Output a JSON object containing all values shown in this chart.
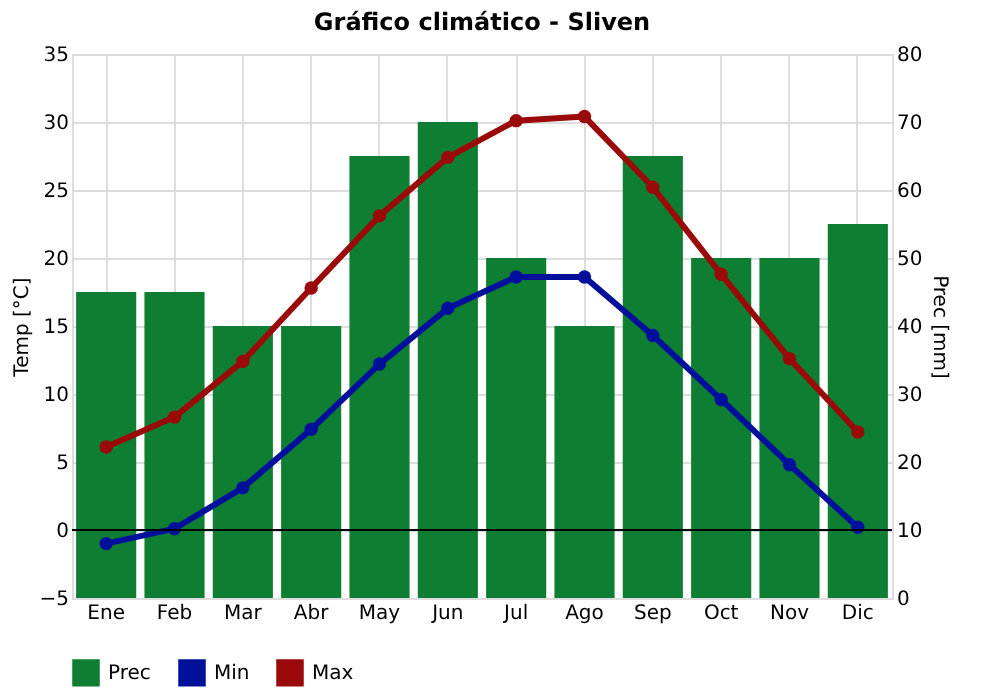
{
  "chart_data": {
    "type": "bar",
    "title": "Gráfico climático - Sliven",
    "ylabel": "Temp [°C]",
    "y2label": "Prec [mm]",
    "categories": [
      "Ene",
      "Feb",
      "Mar",
      "Abr",
      "May",
      "Jun",
      "Jul",
      "Ago",
      "Sep",
      "Oct",
      "Nov",
      "Dic"
    ],
    "series": [
      {
        "name": "Prec",
        "axis": "y2",
        "color": "#0e7f32",
        "values": [
          45,
          45,
          40,
          40,
          65,
          70,
          50,
          40,
          65,
          50,
          50,
          55
        ]
      },
      {
        "name": "Min",
        "type": "line",
        "color": "#00109a",
        "values": [
          -1,
          0.1,
          3.1,
          7.4,
          12.2,
          16.3,
          18.6,
          18.6,
          14.3,
          9.6,
          4.8,
          0.2
        ]
      },
      {
        "name": "Max",
        "type": "line",
        "color": "#9b0a0a",
        "values": [
          6.1,
          8.3,
          12.4,
          17.8,
          23.1,
          27.4,
          30.1,
          30.4,
          25.2,
          18.8,
          12.6,
          7.2
        ]
      }
    ],
    "ylim": [
      -5,
      35
    ],
    "yticks": [
      -5,
      0,
      5,
      10,
      15,
      20,
      25,
      30,
      35
    ],
    "y2lim": [
      0,
      80
    ],
    "y2ticks": [
      0,
      10,
      20,
      30,
      40,
      50,
      60,
      70,
      80
    ],
    "ref_lines": [
      {
        "axis": "y",
        "value": 0,
        "color": "#000000"
      }
    ],
    "grid": true,
    "legend": "bottom left",
    "marker": "circle",
    "line_style": "solid"
  }
}
